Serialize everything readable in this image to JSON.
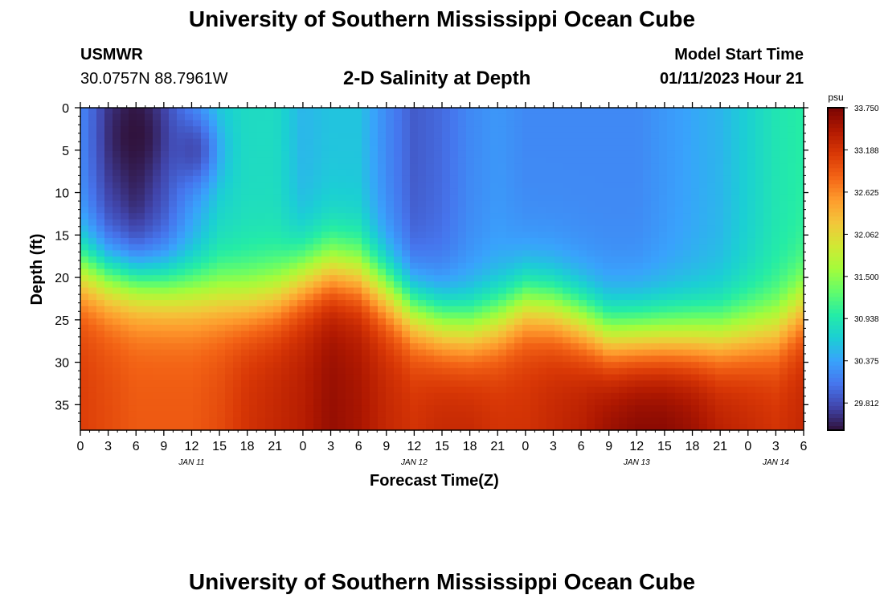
{
  "header": {
    "title": "University of Southern Mississippi Ocean Cube",
    "station": "USMWR",
    "coords": "30.0757N  88.7961W",
    "subtitle": "2-D Salinity at Depth",
    "model_label": "Model Start Time",
    "model_time": "01/11/2023 Hour 21"
  },
  "footer": {
    "title": "University of Southern Mississippi Ocean Cube"
  },
  "chart_data": {
    "type": "heatmap",
    "title": "2-D Salinity at Depth",
    "xlabel": "Forecast Time(Z)",
    "ylabel": "Depth (ft)",
    "x_hours_range": [
      0,
      78
    ],
    "y_range": [
      0,
      38
    ],
    "y_ticks": [
      0,
      5,
      10,
      15,
      20,
      25,
      30,
      35
    ],
    "x_tick_labels": [
      "0",
      "3",
      "6",
      "9",
      "12",
      "15",
      "18",
      "21",
      "0",
      "3",
      "6",
      "9",
      "12",
      "15",
      "18",
      "21",
      "0",
      "3",
      "6",
      "9",
      "12",
      "15",
      "18",
      "21",
      "0",
      "3",
      "6"
    ],
    "date_labels": [
      {
        "label": "JAN 11",
        "hour": 12
      },
      {
        "label": "JAN 12",
        "hour": 36
      },
      {
        "label": "JAN 13",
        "hour": 60
      },
      {
        "label": "JAN 14",
        "hour": 75
      }
    ],
    "colorbar": {
      "unit": "psu",
      "min": 29.45,
      "max": 33.75,
      "labels": [
        "33.750",
        "33.188",
        "32.625",
        "32.062",
        "31.500",
        "30.938",
        "30.375",
        "29.812"
      ]
    },
    "colormap": [
      "#30123b",
      "#4145ab",
      "#4675ed",
      "#39a2fc",
      "#1bcfd4",
      "#24eca6",
      "#61fc6c",
      "#a4fc3b",
      "#d1e834",
      "#f3c63a",
      "#fe9b2d",
      "#f36315",
      "#d93806",
      "#b11901",
      "#7a0403"
    ],
    "profile_hours": [
      0,
      3,
      6,
      9,
      12,
      15,
      18,
      21,
      24,
      27,
      30,
      33,
      36,
      39,
      42,
      45,
      48,
      51,
      54,
      57,
      60,
      63,
      66,
      69,
      72,
      75,
      78
    ],
    "halocline_depth_ft": [
      15.5,
      16.5,
      17,
      17.5,
      18,
      18.5,
      19,
      18.5,
      16.5,
      15.5,
      16,
      18,
      20.5,
      22,
      22.5,
      21.5,
      19.5,
      20,
      21.5,
      23.5,
      23.5,
      23.5,
      23.5,
      23.5,
      23,
      22.5,
      20
    ],
    "surface_salinity_psu": [
      30.2,
      29.7,
      29.5,
      29.8,
      30.3,
      30.7,
      30.8,
      30.8,
      30.5,
      30.6,
      30.6,
      30.2,
      29.9,
      30.0,
      30.2,
      30.3,
      30.2,
      30.2,
      30.2,
      30.2,
      30.2,
      30.3,
      30.4,
      30.5,
      30.7,
      30.9,
      31.0
    ],
    "bottom_salinity_psu": [
      33.1,
      33.0,
      32.9,
      32.9,
      32.9,
      33.0,
      33.2,
      33.3,
      33.4,
      33.6,
      33.5,
      33.3,
      33.2,
      33.3,
      33.3,
      33.2,
      33.2,
      33.3,
      33.4,
      33.6,
      33.7,
      33.7,
      33.6,
      33.4,
      33.3,
      33.2,
      33.3
    ],
    "mixed_layer_min_psu": [
      {
        "hour": 6,
        "depth_ft": 3.5,
        "value": 29.45
      },
      {
        "hour": 12,
        "depth_ft": 5,
        "value": 29.8
      }
    ]
  }
}
